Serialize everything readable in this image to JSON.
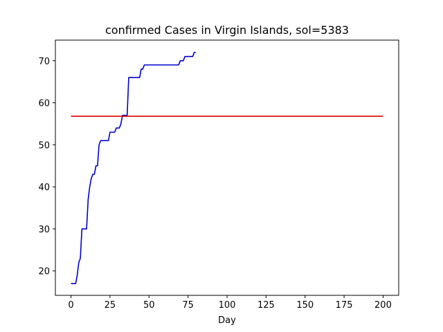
{
  "chart_data": {
    "type": "line",
    "title": "confirmed Cases in Virgin Islands, sol=5383",
    "xlabel": "Day",
    "ylabel": "",
    "xlim": [
      -10,
      210
    ],
    "ylim": [
      14.2,
      74.9
    ],
    "xticks": [
      0,
      25,
      50,
      75,
      100,
      125,
      150,
      175,
      200
    ],
    "yticks": [
      20,
      30,
      40,
      50,
      60,
      70
    ],
    "grid": false,
    "series": [
      {
        "color": "#0000cc",
        "x": [
          0,
          3,
          4,
          5,
          6,
          7,
          8,
          9,
          10,
          11,
          12,
          13,
          14,
          15,
          16,
          17,
          18,
          19,
          20,
          21,
          22,
          23,
          24,
          25,
          26,
          27,
          28,
          29,
          30,
          31,
          32,
          33,
          34,
          35,
          36,
          37,
          38,
          39,
          40,
          41,
          42,
          43,
          44,
          45,
          46,
          47,
          48,
          49,
          50,
          55,
          60,
          65,
          68,
          69,
          70,
          71,
          72,
          73,
          74,
          75,
          76,
          77,
          78,
          79,
          80
        ],
        "y": [
          17,
          17,
          19,
          22,
          23,
          30,
          30,
          30,
          30,
          37,
          40,
          42,
          43,
          43,
          45,
          45,
          50,
          51,
          51,
          51,
          51,
          51,
          51,
          53,
          53,
          53,
          53,
          54,
          54,
          54,
          55,
          57,
          57,
          57,
          57,
          66,
          66,
          66,
          66,
          66,
          66,
          66,
          66,
          68,
          68,
          69,
          69,
          69,
          69,
          69,
          69,
          69,
          69,
          69,
          70,
          70,
          70,
          71,
          71,
          71,
          71,
          71,
          71,
          72,
          72
        ]
      },
      {
        "color": "#dd0000",
        "x": [
          0,
          200
        ],
        "y": [
          56.8,
          56.8
        ]
      }
    ]
  }
}
